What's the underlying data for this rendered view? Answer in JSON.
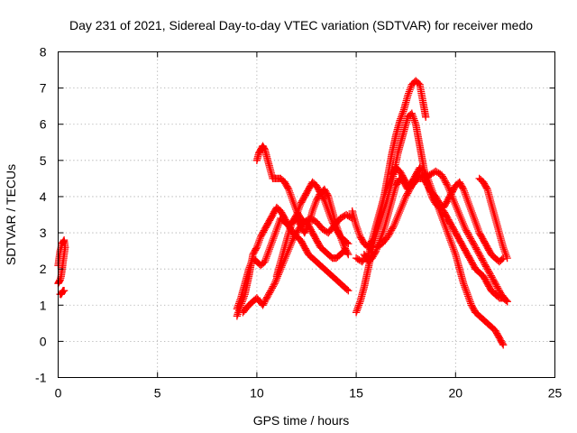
{
  "chart_data": {
    "type": "scatter",
    "title": "Day 231 of 2021, Sidereal Day-to-day VTEC variation (SDTVAR) for receiver medo",
    "xlabel": "GPS time / hours",
    "ylabel": "SDTVAR / TECUs",
    "xlim": [
      0,
      25
    ],
    "ylim": [
      -1,
      8
    ],
    "xticks": [
      "0",
      "5",
      "10",
      "15",
      "20",
      "25"
    ],
    "yticks": [
      "-1",
      "0",
      "1",
      "2",
      "3",
      "4",
      "5",
      "6",
      "7",
      "8"
    ],
    "grid": true,
    "legend": "none",
    "marker": "plus",
    "color": "#ff0000",
    "series": [
      {
        "points": [
          [
            0.0,
            2.1
          ],
          [
            0.05,
            2.3
          ],
          [
            0.1,
            2.5
          ],
          [
            0.15,
            2.6
          ],
          [
            0.2,
            2.7
          ],
          [
            0.3,
            2.8
          ],
          [
            0.35,
            2.6
          ]
        ]
      },
      {
        "points": [
          [
            0.0,
            1.6
          ],
          [
            0.05,
            1.65
          ],
          [
            0.1,
            1.7
          ],
          [
            0.15,
            1.8
          ],
          [
            0.2,
            2.0
          ],
          [
            0.25,
            2.2
          ],
          [
            0.3,
            2.4
          ],
          [
            0.35,
            2.6
          ]
        ]
      },
      {
        "points": [
          [
            0.1,
            1.3
          ],
          [
            0.15,
            1.3
          ],
          [
            0.2,
            1.35
          ],
          [
            0.25,
            1.4
          ],
          [
            0.3,
            1.4
          ]
        ]
      },
      {
        "points": [
          [
            9.0,
            0.7
          ],
          [
            9.2,
            1.0
          ],
          [
            9.4,
            1.3
          ],
          [
            9.6,
            1.8
          ],
          [
            9.8,
            2.4
          ],
          [
            10.0,
            2.6
          ],
          [
            10.2,
            2.9
          ],
          [
            10.4,
            3.1
          ],
          [
            10.6,
            3.3
          ],
          [
            10.8,
            3.5
          ],
          [
            11.0,
            3.7
          ],
          [
            11.2,
            3.6
          ],
          [
            11.4,
            3.4
          ],
          [
            11.6,
            3.2
          ],
          [
            11.8,
            3.0
          ],
          [
            12.0,
            2.9
          ],
          [
            12.2,
            2.8
          ],
          [
            12.4,
            2.6
          ],
          [
            12.6,
            2.4
          ],
          [
            12.8,
            2.3
          ],
          [
            13.0,
            2.2
          ],
          [
            13.2,
            2.1
          ],
          [
            13.4,
            2.0
          ],
          [
            13.6,
            1.9
          ],
          [
            13.8,
            1.8
          ],
          [
            14.0,
            1.7
          ],
          [
            14.2,
            1.6
          ],
          [
            14.4,
            1.5
          ],
          [
            14.6,
            1.4
          ]
        ]
      },
      {
        "points": [
          [
            9.0,
            0.9
          ],
          [
            9.2,
            1.2
          ],
          [
            9.4,
            1.6
          ],
          [
            9.6,
            2.0
          ],
          [
            9.8,
            2.3
          ],
          [
            10.0,
            2.2
          ],
          [
            10.2,
            2.1
          ],
          [
            10.4,
            2.2
          ],
          [
            10.6,
            2.5
          ],
          [
            10.8,
            2.8
          ],
          [
            11.0,
            3.1
          ],
          [
            11.2,
            3.4
          ],
          [
            11.4,
            3.3
          ],
          [
            11.6,
            3.2
          ],
          [
            11.8,
            3.3
          ],
          [
            12.0,
            3.5
          ],
          [
            12.2,
            3.8
          ],
          [
            12.4,
            4.0
          ],
          [
            12.6,
            4.2
          ],
          [
            12.8,
            4.4
          ],
          [
            13.0,
            4.3
          ],
          [
            13.2,
            4.1
          ],
          [
            13.4,
            3.9
          ],
          [
            13.6,
            3.6
          ],
          [
            13.8,
            3.3
          ],
          [
            14.0,
            3.1
          ],
          [
            14.2,
            2.9
          ],
          [
            14.4,
            2.8
          ],
          [
            14.6,
            2.7
          ]
        ]
      },
      {
        "points": [
          [
            9.3,
            0.8
          ],
          [
            9.6,
            1.0
          ],
          [
            10.0,
            1.2
          ],
          [
            10.3,
            1.0
          ],
          [
            10.6,
            1.3
          ],
          [
            10.9,
            1.6
          ],
          [
            11.2,
            2.0
          ],
          [
            11.5,
            2.4
          ],
          [
            11.8,
            2.8
          ],
          [
            12.1,
            3.1
          ],
          [
            12.4,
            3.3
          ],
          [
            12.7,
            3.4
          ],
          [
            13.0,
            3.3
          ],
          [
            13.3,
            3.1
          ],
          [
            13.6,
            3.0
          ],
          [
            13.9,
            3.2
          ],
          [
            14.2,
            3.4
          ],
          [
            14.5,
            3.5
          ],
          [
            14.8,
            3.4
          ]
        ]
      },
      {
        "points": [
          [
            10.0,
            5.0
          ],
          [
            10.1,
            5.2
          ],
          [
            10.2,
            5.3
          ],
          [
            10.3,
            5.4
          ],
          [
            10.4,
            5.3
          ],
          [
            10.5,
            5.1
          ],
          [
            10.6,
            4.9
          ],
          [
            10.7,
            4.7
          ],
          [
            10.8,
            4.5
          ],
          [
            11.0,
            4.5
          ],
          [
            11.2,
            4.5
          ],
          [
            11.4,
            4.4
          ],
          [
            11.6,
            4.2
          ],
          [
            11.8,
            3.9
          ],
          [
            12.0,
            3.6
          ],
          [
            12.2,
            3.4
          ],
          [
            12.4,
            3.3
          ],
          [
            12.6,
            3.2
          ],
          [
            12.8,
            3.0
          ],
          [
            13.0,
            2.8
          ],
          [
            13.2,
            2.6
          ],
          [
            13.4,
            2.5
          ],
          [
            13.6,
            2.4
          ],
          [
            13.8,
            2.3
          ],
          [
            14.0,
            2.3
          ],
          [
            14.2,
            2.4
          ],
          [
            14.4,
            2.5
          ]
        ]
      },
      {
        "points": [
          [
            11.0,
            1.8
          ],
          [
            11.2,
            2.2
          ],
          [
            11.4,
            2.6
          ],
          [
            11.6,
            3.0
          ],
          [
            11.8,
            3.3
          ],
          [
            12.0,
            3.4
          ],
          [
            12.2,
            3.2
          ],
          [
            12.4,
            3.0
          ],
          [
            12.6,
            3.2
          ],
          [
            12.8,
            3.6
          ],
          [
            13.0,
            3.9
          ],
          [
            13.2,
            4.1
          ],
          [
            13.4,
            4.2
          ],
          [
            13.6,
            4.0
          ],
          [
            13.8,
            3.6
          ],
          [
            14.0,
            3.2
          ],
          [
            14.2,
            2.9
          ],
          [
            14.4,
            2.6
          ],
          [
            14.6,
            2.4
          ]
        ]
      },
      {
        "points": [
          [
            14.8,
            3.6
          ],
          [
            15.0,
            3.2
          ],
          [
            15.2,
            2.9
          ],
          [
            15.4,
            2.7
          ],
          [
            15.6,
            2.6
          ],
          [
            15.8,
            2.8
          ],
          [
            16.0,
            3.2
          ],
          [
            16.2,
            3.6
          ],
          [
            16.4,
            4.0
          ],
          [
            16.6,
            4.3
          ],
          [
            16.8,
            4.6
          ],
          [
            17.0,
            4.8
          ],
          [
            17.2,
            4.7
          ],
          [
            17.4,
            4.5
          ],
          [
            17.6,
            4.3
          ],
          [
            17.8,
            4.4
          ],
          [
            18.0,
            4.6
          ],
          [
            18.2,
            4.8
          ],
          [
            18.4,
            4.7
          ],
          [
            18.6,
            4.5
          ],
          [
            18.8,
            4.2
          ],
          [
            19.0,
            3.9
          ],
          [
            19.2,
            3.6
          ],
          [
            19.4,
            3.3
          ],
          [
            19.6,
            3.0
          ],
          [
            19.8,
            2.7
          ],
          [
            20.0,
            2.4
          ],
          [
            20.2,
            2.0
          ],
          [
            20.4,
            1.6
          ],
          [
            20.6,
            1.3
          ],
          [
            20.8,
            1.0
          ],
          [
            21.0,
            0.8
          ],
          [
            21.2,
            0.7
          ],
          [
            21.4,
            0.6
          ],
          [
            21.6,
            0.5
          ],
          [
            21.8,
            0.4
          ],
          [
            22.0,
            0.3
          ],
          [
            22.2,
            0.1
          ],
          [
            22.4,
            -0.1
          ]
        ]
      },
      {
        "points": [
          [
            15.0,
            0.8
          ],
          [
            15.2,
            1.1
          ],
          [
            15.4,
            1.5
          ],
          [
            15.6,
            2.0
          ],
          [
            15.8,
            2.5
          ],
          [
            16.0,
            3.0
          ],
          [
            16.2,
            3.5
          ],
          [
            16.4,
            4.0
          ],
          [
            16.6,
            4.6
          ],
          [
            16.8,
            5.2
          ],
          [
            17.0,
            5.7
          ],
          [
            17.2,
            6.1
          ],
          [
            17.4,
            6.4
          ],
          [
            17.6,
            6.8
          ],
          [
            17.8,
            7.1
          ],
          [
            18.0,
            7.2
          ],
          [
            18.2,
            7.1
          ],
          [
            18.4,
            6.5
          ],
          [
            18.5,
            6.2
          ]
        ]
      },
      {
        "points": [
          [
            15.0,
            2.3
          ],
          [
            15.3,
            2.2
          ],
          [
            15.6,
            2.4
          ],
          [
            15.9,
            2.8
          ],
          [
            16.2,
            3.3
          ],
          [
            16.5,
            3.8
          ],
          [
            16.8,
            4.4
          ],
          [
            17.1,
            5.2
          ],
          [
            17.4,
            5.8
          ],
          [
            17.6,
            6.2
          ],
          [
            17.8,
            6.3
          ],
          [
            18.0,
            6.0
          ],
          [
            18.2,
            5.4
          ],
          [
            18.4,
            4.8
          ],
          [
            18.6,
            4.3
          ],
          [
            18.8,
            4.0
          ],
          [
            19.0,
            3.8
          ],
          [
            19.2,
            3.7
          ],
          [
            19.4,
            3.6
          ],
          [
            19.6,
            3.4
          ],
          [
            19.8,
            3.2
          ],
          [
            20.0,
            3.0
          ],
          [
            20.2,
            2.8
          ],
          [
            20.4,
            2.6
          ],
          [
            20.6,
            2.4
          ],
          [
            20.8,
            2.2
          ],
          [
            21.0,
            2.0
          ],
          [
            21.2,
            1.9
          ],
          [
            21.4,
            1.8
          ],
          [
            21.6,
            1.6
          ],
          [
            21.8,
            1.4
          ],
          [
            22.0,
            1.3
          ],
          [
            22.2,
            1.2
          ],
          [
            22.4,
            1.2
          ],
          [
            22.6,
            1.1
          ]
        ]
      },
      {
        "points": [
          [
            15.4,
            2.4
          ],
          [
            15.6,
            2.2
          ],
          [
            15.8,
            2.3
          ],
          [
            16.0,
            2.5
          ],
          [
            16.2,
            2.8
          ],
          [
            16.4,
            3.1
          ],
          [
            16.6,
            3.5
          ],
          [
            16.8,
            3.9
          ],
          [
            17.0,
            4.3
          ],
          [
            17.2,
            4.5
          ],
          [
            17.4,
            4.4
          ],
          [
            17.6,
            4.2
          ],
          [
            17.8,
            4.3
          ],
          [
            18.0,
            4.5
          ],
          [
            18.2,
            4.6
          ],
          [
            18.4,
            4.5
          ],
          [
            18.6,
            4.3
          ],
          [
            18.8,
            4.1
          ],
          [
            19.0,
            4.0
          ],
          [
            19.2,
            3.8
          ],
          [
            19.4,
            3.7
          ],
          [
            19.6,
            3.9
          ],
          [
            19.8,
            4.1
          ],
          [
            20.0,
            4.3
          ],
          [
            20.2,
            4.4
          ],
          [
            20.4,
            4.2
          ],
          [
            20.6,
            3.9
          ],
          [
            20.8,
            3.6
          ],
          [
            21.0,
            3.3
          ],
          [
            21.2,
            3.0
          ],
          [
            21.4,
            2.8
          ],
          [
            21.6,
            2.6
          ],
          [
            21.8,
            2.4
          ],
          [
            22.0,
            2.3
          ],
          [
            22.2,
            2.2
          ],
          [
            22.4,
            2.3
          ]
        ]
      },
      {
        "points": [
          [
            16.0,
            2.6
          ],
          [
            16.3,
            2.7
          ],
          [
            16.6,
            2.9
          ],
          [
            16.9,
            3.2
          ],
          [
            17.2,
            3.6
          ],
          [
            17.5,
            4.0
          ],
          [
            17.8,
            4.3
          ],
          [
            18.1,
            4.5
          ],
          [
            18.4,
            4.5
          ],
          [
            18.7,
            4.6
          ],
          [
            19.0,
            4.7
          ],
          [
            19.3,
            4.6
          ],
          [
            19.6,
            4.3
          ],
          [
            19.9,
            3.9
          ],
          [
            20.2,
            3.5
          ],
          [
            20.5,
            3.1
          ],
          [
            20.8,
            2.8
          ],
          [
            21.1,
            2.5
          ],
          [
            21.4,
            2.2
          ],
          [
            21.7,
            1.9
          ],
          [
            22.0,
            1.6
          ],
          [
            22.3,
            1.3
          ],
          [
            22.6,
            1.1
          ]
        ]
      },
      {
        "points": [
          [
            21.2,
            4.5
          ],
          [
            21.4,
            4.4
          ],
          [
            21.6,
            4.2
          ],
          [
            21.8,
            3.8
          ],
          [
            22.0,
            3.4
          ],
          [
            22.2,
            3.0
          ],
          [
            22.4,
            2.6
          ],
          [
            22.6,
            2.3
          ]
        ]
      }
    ]
  }
}
